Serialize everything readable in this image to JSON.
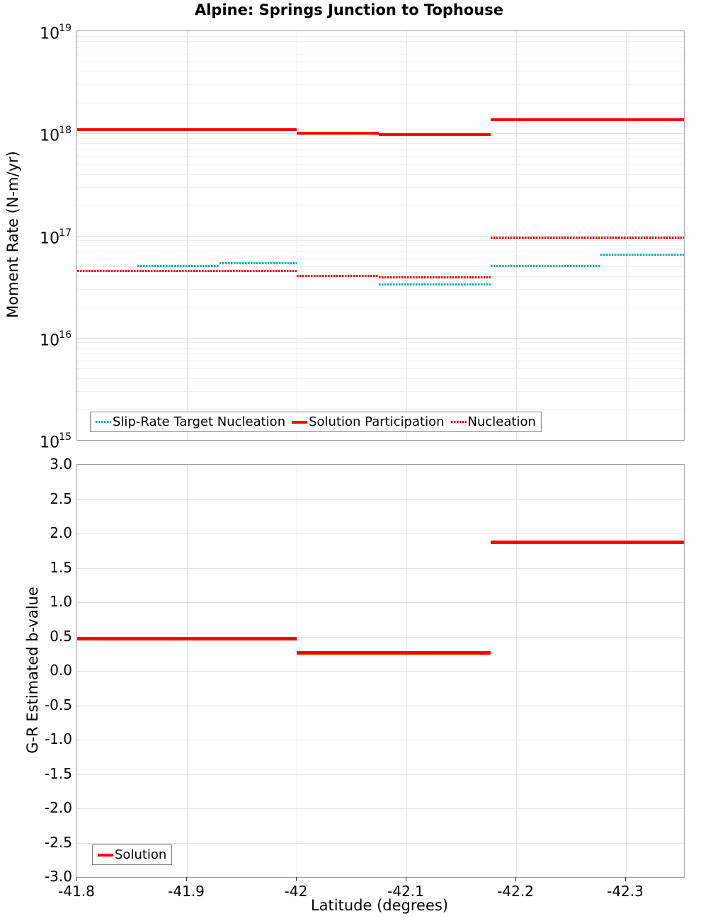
{
  "title": "Alpine: Springs Junction to Tophouse",
  "colors": {
    "solution_red": "#ff0000",
    "nucleation_red": "#e60000",
    "slip_rate_cyan": "#00b2b0",
    "grid_major": "#e2e2e2",
    "grid_minor": "#f1f1f1",
    "plot_border": "#9c9c9c",
    "tick_text": "#000000"
  },
  "top_plot": {
    "ylabel": "Moment Rate (N-m/yr)",
    "ytick_exponents": [
      19,
      18,
      17,
      16,
      15
    ],
    "legend": {
      "slip_rate_target": "Slip-Rate Target Nucleation",
      "solution": "Solution Participation",
      "nucleation": "Nucleation"
    }
  },
  "bottom_plot": {
    "ylabel": "G-R Estimated b-value",
    "xlabel": "Latitude (degrees)",
    "yticks": [
      "3.0",
      "2.5",
      "2.0",
      "1.5",
      "1.0",
      "0.5",
      "0.0",
      "-0.5",
      "-1.0",
      "-1.5",
      "-2.0",
      "-2.5",
      "-3.0"
    ],
    "ytick_values": [
      3.0,
      2.5,
      2.0,
      1.5,
      1.0,
      0.5,
      0.0,
      -0.5,
      -1.0,
      -1.5,
      -2.0,
      -2.5,
      -3.0
    ],
    "xticks": [
      {
        "label": "-41.8",
        "value": -41.8
      },
      {
        "label": "-41.9",
        "value": -41.9
      },
      {
        "label": "-42",
        "value": -42.0
      },
      {
        "label": "-42.1",
        "value": -42.1
      },
      {
        "label": "-42.2",
        "value": -42.2
      },
      {
        "label": "-42.3",
        "value": -42.3
      }
    ],
    "legend": {
      "solution": "Solution"
    }
  },
  "chart_data": [
    {
      "type": "line",
      "subplot": "top",
      "title": "Alpine: Springs Junction to Tophouse",
      "xlabel": "Latitude (degrees)",
      "ylabel": "Moment Rate (N-m/yr)",
      "yscale": "log",
      "ylim": [
        1000000000000000.0,
        1e+19
      ],
      "xlim": [
        -41.8,
        -42.353
      ],
      "grid": true,
      "legend_position": "bottom-left",
      "series": [
        {
          "name": "Slip-Rate Target Nucleation",
          "style": "dotted",
          "color_key": "slip_rate_cyan",
          "step_segments": [
            {
              "lat": [
                -41.8,
                -41.855
              ],
              "value": 4.5e+16
            },
            {
              "lat": [
                -41.855,
                -41.93
              ],
              "value": 5e+16
            },
            {
              "lat": [
                -41.93,
                -42.0
              ],
              "value": 5.4e+16
            },
            {
              "lat": [
                -42.0,
                -42.075
              ],
              "value": 4e+16
            },
            {
              "lat": [
                -42.075,
                -42.177
              ],
              "value": 3.35e+16
            },
            {
              "lat": [
                -42.177,
                -42.277
              ],
              "value": 5e+16
            },
            {
              "lat": [
                -42.277,
                -42.353
              ],
              "value": 6.5e+16
            }
          ]
        },
        {
          "name": "Nucleation",
          "style": "dotted",
          "color_key": "nucleation_red",
          "step_segments": [
            {
              "lat": [
                -41.8,
                -42.0
              ],
              "value": 4.5e+16
            },
            {
              "lat": [
                -42.0,
                -42.075
              ],
              "value": 4e+16
            },
            {
              "lat": [
                -42.075,
                -42.177
              ],
              "value": 3.9e+16
            },
            {
              "lat": [
                -42.177,
                -42.353
              ],
              "value": 9.5e+16
            }
          ]
        },
        {
          "name": "Solution Participation",
          "style": "solid",
          "color_key": "solution_red",
          "step_segments": [
            {
              "lat": [
                -41.8,
                -42.0
              ],
              "value": 1.08e+18
            },
            {
              "lat": [
                -42.0,
                -42.075
              ],
              "value": 1.01e+18
            },
            {
              "lat": [
                -42.075,
                -42.177
              ],
              "value": 9.8e+17
            },
            {
              "lat": [
                -42.177,
                -42.277
              ],
              "value": 1.35e+18
            },
            {
              "lat": [
                -42.277,
                -42.353
              ],
              "value": 1.35e+18
            }
          ]
        }
      ]
    },
    {
      "type": "line",
      "subplot": "bottom",
      "ylabel": "G-R Estimated b-value",
      "xlabel": "Latitude (degrees)",
      "yscale": "linear",
      "ylim": [
        -3.0,
        3.0
      ],
      "xlim": [
        -41.8,
        -42.353
      ],
      "grid": true,
      "legend_position": "bottom-left",
      "series": [
        {
          "name": "Solution",
          "style": "solid",
          "color_key": "solution_red",
          "step_segments": [
            {
              "lat": [
                -41.8,
                -42.0
              ],
              "value": 0.47
            },
            {
              "lat": [
                -42.0,
                -42.177
              ],
              "value": 0.26
            },
            {
              "lat": [
                -42.177,
                -42.353
              ],
              "value": 1.87
            }
          ]
        }
      ]
    }
  ]
}
